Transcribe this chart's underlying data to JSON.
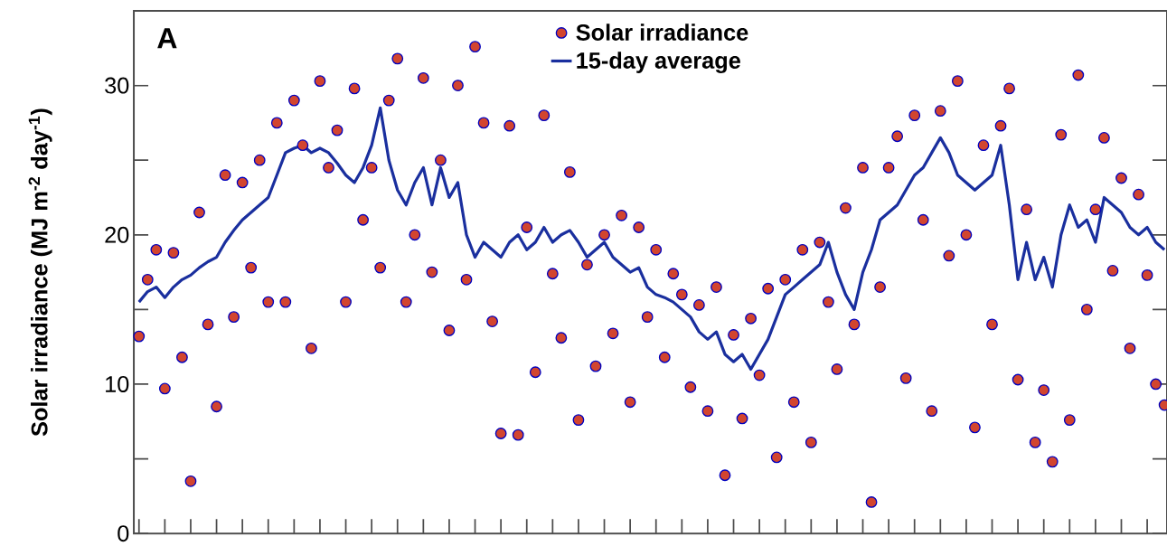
{
  "chart_data": {
    "type": "scatter",
    "ylabel": "Solar irradiance (MJ m$^{-2}$ day$^{-1}$)",
    "annotations": [
      "A"
    ],
    "categories": [
      null,
      null,
      null,
      null,
      null,
      null,
      null,
      null,
      null,
      null,
      null,
      null,
      null,
      null,
      null,
      null,
      null,
      null,
      null,
      null,
      null,
      null,
      null,
      null,
      null,
      null,
      null,
      null,
      null,
      null,
      null,
      null,
      null,
      null,
      null,
      null,
      null,
      null,
      null,
      null,
      null,
      null,
      null,
      null,
      null,
      null,
      null,
      null,
      null,
      null,
      null,
      null,
      null,
      null,
      null,
      null,
      null,
      null,
      null,
      null,
      null,
      null,
      null,
      null,
      null,
      null,
      null,
      null,
      null,
      null,
      null,
      null,
      null,
      null,
      null,
      null,
      null,
      null,
      null,
      null,
      null,
      null,
      null,
      null,
      null,
      null,
      null,
      null,
      null,
      null,
      null,
      null,
      null,
      null,
      null,
      null,
      null,
      null,
      null,
      null,
      null,
      null,
      null,
      null,
      null,
      null,
      null,
      null,
      null,
      null,
      null,
      null,
      null,
      null,
      null,
      null,
      null,
      null,
      null,
      null
    ],
    "ylim": [
      0,
      35
    ],
    "yticks": [
      0,
      {
        "value": 5,
        "label": null
      },
      10,
      {
        "value": 15,
        "label": null
      },
      20,
      {
        "value": 25,
        "label": null
      },
      30
    ],
    "tick_labels": "y",
    "legend": "top",
    "series": [
      {
        "name": "Solar irradiance",
        "marker": "circle",
        "color": "#d2452f",
        "values": [
          13.2,
          17,
          19,
          9.7,
          18.8,
          11.8,
          3.5,
          21.5,
          14,
          8.5,
          24,
          14.5,
          23.5,
          17.8,
          25,
          15.5,
          27.5,
          15.5,
          29,
          26,
          12.4,
          30.3,
          24.5,
          27,
          15.5,
          29.8,
          21,
          24.5,
          17.8,
          29,
          31.8,
          15.5,
          20,
          30.5,
          17.5,
          25,
          13.6,
          30,
          17,
          32.6,
          27.5,
          14.2,
          6.7,
          27.3,
          6.6,
          20.5,
          10.8,
          28,
          17.4,
          13.1,
          24.2,
          7.6,
          18,
          11.2,
          20,
          13.4,
          21.3,
          8.8,
          20.5,
          14.5,
          19,
          11.8,
          17.4,
          16,
          9.8,
          15.3,
          8.2,
          16.5,
          3.9,
          13.3,
          7.7,
          14.4,
          10.6,
          16.4,
          5.1,
          17,
          8.8,
          19,
          6.1,
          19.5,
          15.5,
          11,
          21.8,
          14,
          24.5,
          2.1,
          16.5,
          24.5,
          26.6,
          10.4,
          28,
          21,
          8.2,
          28.3,
          18.6,
          30.3,
          20,
          7.1,
          26,
          14,
          27.3,
          29.8,
          10.3,
          21.7,
          6.1,
          9.6,
          4.8,
          26.7,
          7.6,
          30.7,
          15,
          21.7,
          26.5,
          17.6,
          23.8,
          12.4,
          22.7,
          17.3,
          10,
          8.6
        ]
      },
      {
        "name": "15-day average",
        "type": "line",
        "marker": "none",
        "line_style": "solid",
        "color": "#1a2f9e",
        "values": [
          15.5,
          16.2,
          16.5,
          15.8,
          16.5,
          17,
          17.3,
          17.8,
          18.2,
          18.5,
          19.5,
          20.3,
          21,
          21.5,
          22,
          22.5,
          24,
          25.5,
          25.8,
          26,
          25.5,
          25.8,
          25.5,
          24.8,
          24,
          23.5,
          24.5,
          26,
          28.5,
          25,
          23,
          22,
          23.5,
          24.5,
          22,
          24.5,
          22.5,
          23.5,
          20,
          18.5,
          19.5,
          19,
          18.5,
          19.5,
          20,
          19,
          19.5,
          20.5,
          19.5,
          20,
          20.3,
          19.5,
          18.5,
          19,
          19.5,
          18.5,
          18,
          17.5,
          17.8,
          16.5,
          16,
          15.8,
          15.5,
          15,
          14.5,
          13.5,
          13,
          13.5,
          12,
          11.5,
          12,
          11,
          12,
          13,
          14.5,
          16,
          16.5,
          17,
          17.5,
          18,
          19.5,
          17.5,
          16,
          15,
          17.5,
          19,
          21,
          21.5,
          22,
          23,
          24,
          24.5,
          25.5,
          26.5,
          25.5,
          24,
          23.5,
          23,
          23.5,
          24,
          26,
          22,
          17,
          19.5,
          17,
          18.5,
          16.5,
          20,
          22,
          20.5,
          21,
          19.5,
          22.5,
          22,
          21.5,
          20.5,
          20,
          20.5,
          19.5,
          19
        ]
      }
    ]
  }
}
